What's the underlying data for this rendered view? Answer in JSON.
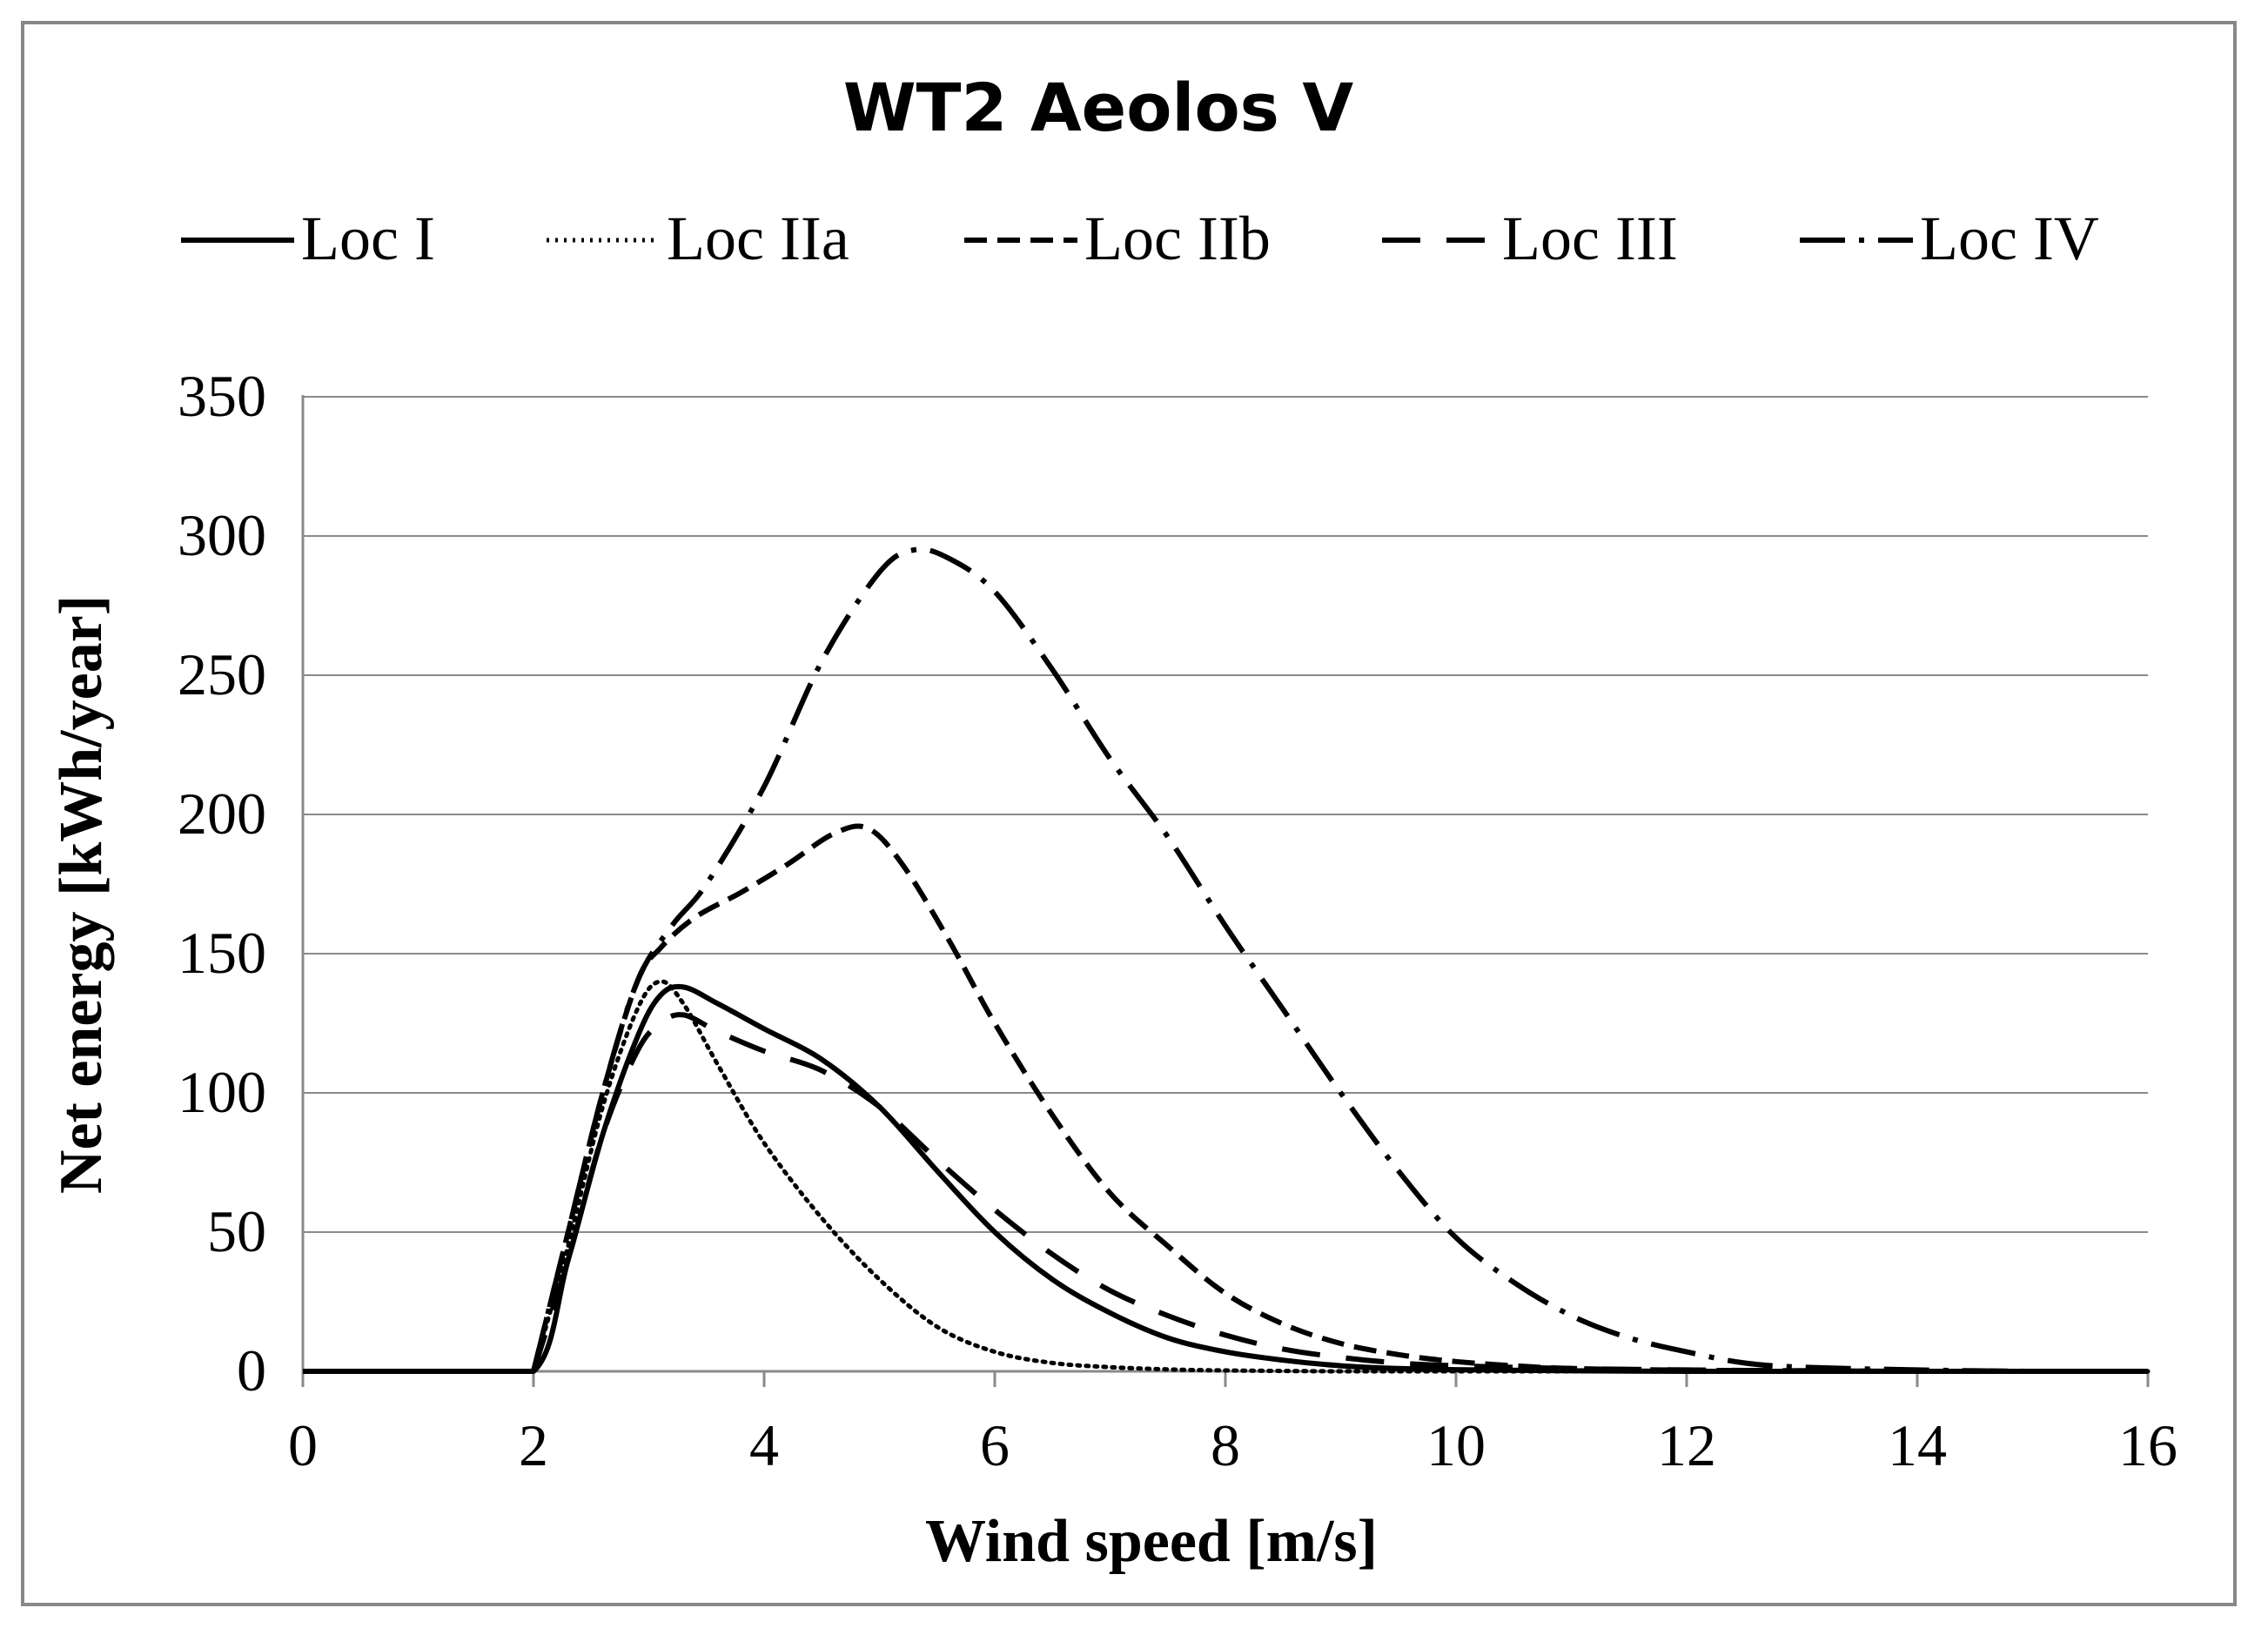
{
  "chart_data": {
    "type": "line",
    "title": "WT2 Aeolos V",
    "xlabel": "Wind speed [m/s]",
    "ylabel": "Net energy [kWh/year]",
    "xlim": [
      0,
      16
    ],
    "ylim": [
      0,
      350
    ],
    "xticks": [
      "0",
      "2",
      "4",
      "6",
      "8",
      "10",
      "12",
      "14",
      "16"
    ],
    "yticks": [
      "0",
      "50",
      "100",
      "150",
      "200",
      "250",
      "300",
      "350"
    ],
    "grid": "horizontal",
    "legend_position": "top",
    "series": [
      {
        "name": "Loc I",
        "style": "solid",
        "x": [
          0,
          1.2,
          2.0,
          2.3,
          2.6,
          2.9,
          3.1,
          3.3,
          3.6,
          4.0,
          4.5,
          5.0,
          5.5,
          6.0,
          6.5,
          7.0,
          7.5,
          8.0,
          8.5,
          9.0,
          9.5,
          10,
          11,
          12,
          13,
          14,
          15,
          16
        ],
        "y": [
          0,
          0,
          0,
          40,
          85,
          120,
          135,
          138,
          132,
          123,
          112,
          95,
          72,
          50,
          33,
          21,
          12,
          7,
          4,
          2,
          1,
          0.6,
          0.2,
          0,
          0,
          0,
          0,
          0
        ]
      },
      {
        "name": "Loc IIa",
        "style": "dotted",
        "x": [
          2.0,
          2.3,
          2.6,
          2.9,
          3.1,
          3.3,
          3.6,
          4.0,
          4.5,
          5.0,
          5.5,
          6.0,
          6.5,
          7.0,
          7.5,
          8.0,
          9.0,
          10,
          16
        ],
        "y": [
          0,
          45,
          95,
          130,
          140,
          132,
          110,
          82,
          55,
          33,
          16,
          7,
          3,
          1.5,
          0.7,
          0.3,
          0,
          0,
          0
        ]
      },
      {
        "name": "Loc IIb",
        "style": "dashed",
        "x": [
          2.0,
          2.3,
          2.6,
          2.9,
          3.1,
          3.4,
          3.8,
          4.2,
          4.6,
          4.9,
          5.2,
          5.6,
          6.0,
          6.5,
          7.0,
          7.5,
          8.0,
          8.5,
          9.0,
          9.5,
          10,
          10.5,
          11,
          12,
          13,
          14,
          15,
          16
        ],
        "y": [
          0,
          50,
          100,
          140,
          152,
          163,
          172,
          182,
          193,
          195,
          182,
          155,
          125,
          92,
          64,
          45,
          28,
          17,
          10,
          6,
          3.5,
          2,
          1,
          0.4,
          0.2,
          0,
          0,
          0
        ]
      },
      {
        "name": "Loc III",
        "style": "long-dash",
        "x": [
          2.0,
          2.3,
          2.6,
          2.9,
          3.1,
          3.3,
          3.6,
          4.0,
          4.5,
          5.0,
          5.5,
          6.0,
          6.5,
          7.0,
          7.5,
          8.0,
          8.5,
          9.0,
          9.5,
          10,
          11,
          12,
          13,
          14,
          15,
          16
        ],
        "y": [
          0,
          40,
          85,
          115,
          125,
          128,
          122,
          115,
          108,
          95,
          76,
          58,
          42,
          29,
          20,
          13,
          8,
          5,
          3,
          2,
          1,
          0.5,
          0.2,
          0,
          0,
          0
        ]
      },
      {
        "name": "Loc IV",
        "style": "dash-dot",
        "x": [
          2.0,
          2.3,
          2.6,
          2.9,
          3.2,
          3.5,
          4.0,
          4.5,
          5.0,
          5.3,
          5.6,
          6.0,
          6.5,
          7.0,
          7.5,
          8.0,
          8.5,
          9.0,
          9.5,
          10,
          10.5,
          11,
          11.5,
          12,
          12.5,
          13,
          14,
          15,
          16
        ],
        "y": [
          0,
          50,
          100,
          140,
          160,
          175,
          210,
          255,
          287,
          295,
          292,
          280,
          252,
          220,
          192,
          160,
          130,
          100,
          72,
          48,
          32,
          20,
          12,
          7,
          3,
          1.5,
          0.5,
          0,
          0
        ]
      }
    ]
  }
}
